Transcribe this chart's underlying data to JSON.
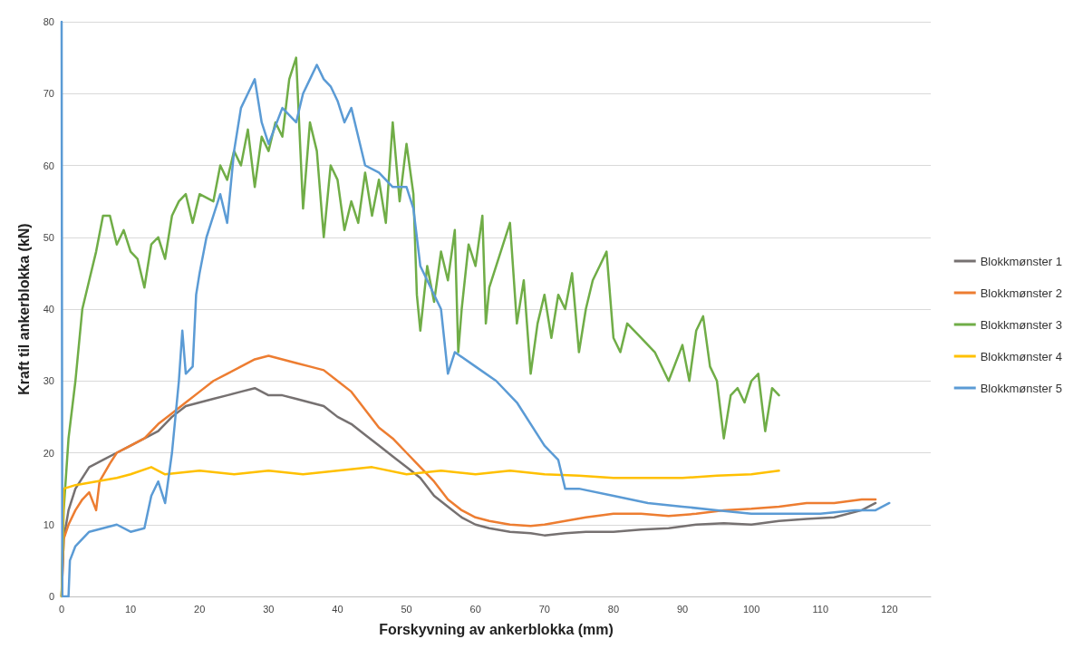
{
  "chart_data": {
    "type": "line",
    "xlabel": "Forskyvning av ankerblokka (mm)",
    "ylabel": "Kraft til ankerblokka (kN)",
    "xlim": [
      0,
      126
    ],
    "xticks": [
      0,
      10,
      20,
      30,
      40,
      50,
      60,
      70,
      80,
      90,
      100,
      110,
      120
    ],
    "ylim": [
      0,
      80
    ],
    "yticks": [
      0,
      10,
      20,
      30,
      40,
      50,
      60,
      70,
      80
    ],
    "grid": "y",
    "legend": "right",
    "marker": "none",
    "line_style": "solid",
    "series": [
      {
        "name": "Blokkmønster 1",
        "color": "#767171",
        "x": [
          0,
          0.3,
          1,
          2,
          4,
          6,
          8,
          10,
          12,
          14,
          16,
          18,
          20,
          22,
          24,
          26,
          28,
          30,
          32,
          34,
          36,
          38,
          40,
          42,
          44,
          46,
          48,
          50,
          52,
          54,
          56,
          58,
          60,
          62,
          65,
          68,
          70,
          73,
          76,
          80,
          84,
          88,
          92,
          96,
          100,
          104,
          108,
          112,
          116,
          118
        ],
        "values": [
          0,
          8,
          12,
          15,
          18,
          19,
          20,
          21,
          22,
          23,
          25,
          26.5,
          27,
          27.5,
          28,
          28.5,
          29,
          28,
          28,
          27.5,
          27,
          26.5,
          25,
          24,
          22.5,
          21,
          19.5,
          18,
          16.5,
          14,
          12.5,
          11,
          10,
          9.5,
          9,
          8.8,
          8.5,
          8.8,
          9,
          9,
          9.3,
          9.5,
          10,
          10.2,
          10,
          10.5,
          10.8,
          11,
          12,
          13
        ]
      },
      {
        "name": "Blokkmønster 2",
        "color": "#ed7d31",
        "x": [
          0,
          0.3,
          1,
          2,
          3,
          4,
          5,
          5.5,
          7,
          8,
          10,
          12,
          14,
          16,
          18,
          20,
          22,
          24,
          26,
          28,
          30,
          32,
          34,
          36,
          38,
          40,
          42,
          44,
          46,
          48,
          50,
          52,
          54,
          56,
          58,
          60,
          62,
          65,
          68,
          70,
          73,
          76,
          80,
          84,
          88,
          92,
          96,
          100,
          104,
          108,
          112,
          116,
          118
        ],
        "values": [
          0,
          8,
          10,
          12,
          13.5,
          14.5,
          12,
          16,
          18.5,
          20,
          21,
          22,
          24,
          25.5,
          27,
          28.5,
          30,
          31,
          32,
          33,
          33.5,
          33,
          32.5,
          32,
          31.5,
          30,
          28.5,
          26,
          23.5,
          22,
          20,
          18,
          16,
          13.5,
          12,
          11,
          10.5,
          10,
          9.8,
          10,
          10.5,
          11,
          11.5,
          11.5,
          11.2,
          11.5,
          12,
          12.2,
          12.5,
          13,
          13,
          13.5,
          13.5
        ]
      },
      {
        "name": "Blokkmønster 3",
        "color": "#70ad47",
        "x": [
          0,
          0.3,
          1,
          2,
          3,
          4,
          5,
          6,
          7,
          8,
          9,
          10,
          11,
          12,
          13,
          14,
          15,
          16,
          17,
          18,
          19,
          20,
          22,
          23,
          24,
          25,
          26,
          27,
          28,
          29,
          30,
          31,
          32,
          33,
          34,
          35,
          36,
          37,
          38,
          39,
          40,
          41,
          42,
          43,
          44,
          45,
          46,
          47,
          48,
          49,
          50,
          51,
          51.5,
          52,
          53,
          54,
          55,
          56,
          57,
          57.5,
          58,
          59,
          60,
          61,
          61.5,
          62,
          63,
          65,
          66,
          67,
          68,
          69,
          70,
          71,
          72,
          73,
          74,
          75,
          76,
          77,
          78,
          79,
          80,
          81,
          82,
          84,
          86,
          88,
          90,
          91,
          92,
          93,
          94,
          95,
          96,
          97,
          98,
          99,
          100,
          101,
          102,
          103,
          104
        ],
        "values": [
          0,
          12,
          22,
          30,
          40,
          44,
          48,
          53,
          53,
          49,
          51,
          48,
          47,
          43,
          49,
          50,
          47,
          53,
          55,
          56,
          52,
          56,
          55,
          60,
          58,
          62,
          60,
          65,
          57,
          64,
          62,
          66,
          64,
          72,
          75,
          54,
          66,
          62,
          50,
          60,
          58,
          51,
          55,
          52,
          59,
          53,
          58,
          52,
          66,
          55,
          63,
          56,
          42,
          37,
          46,
          41,
          48,
          44,
          51,
          34,
          40,
          49,
          46,
          53,
          38,
          43,
          46,
          52,
          38,
          44,
          31,
          38,
          42,
          36,
          42,
          40,
          45,
          34,
          40,
          44,
          46,
          48,
          36,
          34,
          38,
          36,
          34,
          30,
          35,
          30,
          37,
          39,
          32,
          30,
          22,
          28,
          29,
          27,
          30,
          31,
          23,
          29,
          28
        ]
      },
      {
        "name": "Blokkmønster 4",
        "color": "#ffc000",
        "x": [
          0,
          0.3,
          2,
          5,
          8,
          10,
          13,
          15,
          20,
          25,
          30,
          35,
          40,
          45,
          50,
          55,
          60,
          65,
          70,
          75,
          80,
          85,
          90,
          95,
          100,
          104
        ],
        "values": [
          0,
          15,
          15.5,
          16,
          16.5,
          17,
          18,
          17,
          17.5,
          17,
          17.5,
          17,
          17.5,
          18,
          17,
          17.5,
          17,
          17.5,
          17,
          16.8,
          16.5,
          16.5,
          16.5,
          16.8,
          17,
          17.5
        ]
      },
      {
        "name": "Blokkmønster 5",
        "color": "#5b9bd5",
        "x": [
          0,
          0.1,
          1,
          1.2,
          2,
          4,
          6,
          8,
          10,
          12,
          13,
          14,
          15,
          16,
          17,
          17.5,
          18,
          19,
          19.5,
          20,
          21,
          22,
          23,
          24,
          25,
          26,
          27,
          28,
          29,
          30,
          32,
          34,
          35,
          36,
          37,
          38,
          39,
          40,
          41,
          42,
          43,
          44,
          46,
          48,
          50,
          51,
          52,
          53,
          55,
          56,
          57,
          60,
          63,
          66,
          70,
          72,
          73,
          75,
          80,
          85,
          90,
          95,
          100,
          105,
          110,
          115,
          118,
          120
        ],
        "values": [
          80,
          0,
          0,
          5,
          7,
          9,
          9.5,
          10,
          9,
          9.5,
          14,
          16,
          13,
          20,
          30,
          37,
          31,
          32,
          42,
          45,
          50,
          53,
          56,
          52,
          62,
          68,
          70,
          72,
          66,
          63,
          68,
          66,
          70,
          72,
          74,
          72,
          71,
          69,
          66,
          68,
          64,
          60,
          59,
          57,
          57,
          54,
          46,
          44,
          40,
          31,
          34,
          32,
          30,
          27,
          21,
          19,
          15,
          15,
          14,
          13,
          12.5,
          12,
          11.5,
          11.5,
          11.5,
          12,
          12,
          13
        ]
      }
    ]
  }
}
